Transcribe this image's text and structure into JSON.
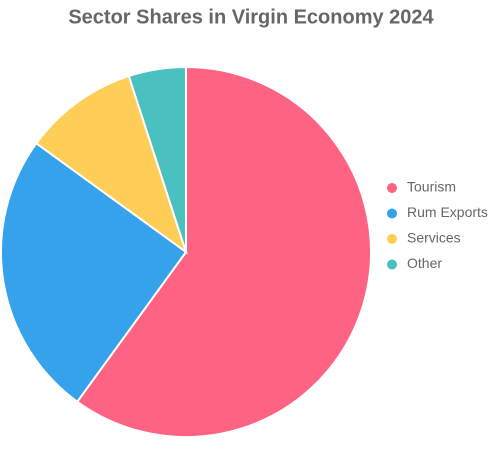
{
  "chart_data": {
    "type": "pie",
    "title": "Sector Shares in Virgin Economy 2024",
    "categories": [
      "Tourism",
      "Rum Exports",
      "Services",
      "Other"
    ],
    "values": [
      60,
      25,
      10,
      5
    ],
    "colors": [
      "#ff6384",
      "#36a2eb",
      "#ffce56",
      "#4bc0c0"
    ],
    "legend": "right"
  }
}
